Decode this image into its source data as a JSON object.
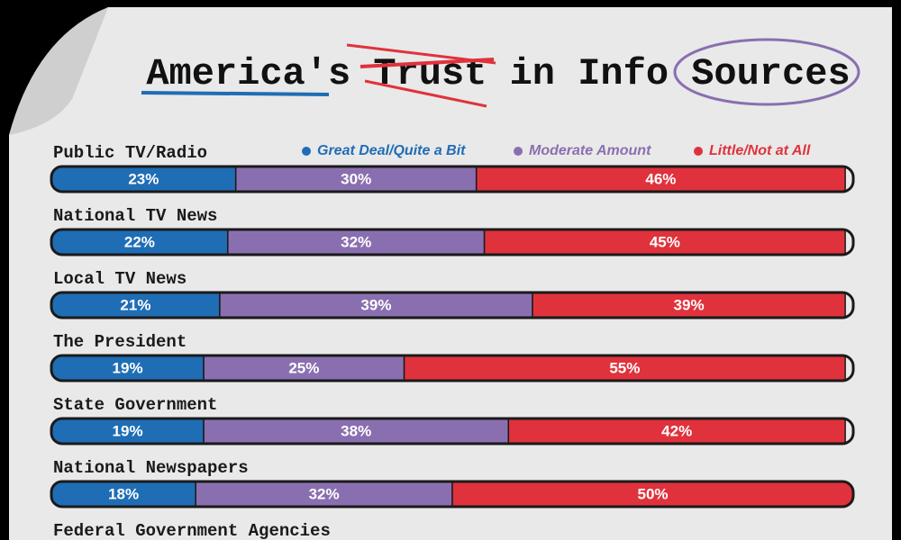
{
  "chart_data": {
    "type": "stacked-bar",
    "title": "America's Trust in Info Sources",
    "categories": [
      "Public TV/Radio",
      "National TV News",
      "Local TV News",
      "The President",
      "State Government",
      "National Newspapers",
      "Federal Government Agencies"
    ],
    "xlim": [
      0,
      100
    ],
    "series": [
      {
        "name": "Great Deal/Quite a Bit",
        "color": "#1f6db5",
        "values": [
          23,
          22,
          21,
          19,
          19,
          18,
          null
        ],
        "value_labels": [
          "23%",
          "22%",
          "21%",
          "19%",
          "19%",
          "18%",
          null
        ]
      },
      {
        "name": "Moderate Amount",
        "color": "#8a6fb0",
        "values": [
          30,
          32,
          39,
          25,
          38,
          32,
          null
        ],
        "value_labels": [
          "30%",
          "32%",
          "39%",
          "25%",
          "38%",
          "32%",
          null
        ]
      },
      {
        "name": "Little/Not at All",
        "color": "#e0323c",
        "values": [
          46,
          45,
          39,
          55,
          42,
          50,
          null
        ],
        "value_labels": [
          "46%",
          "45%",
          "39%",
          "55%",
          "42%",
          "50%",
          null
        ]
      }
    ]
  }
}
